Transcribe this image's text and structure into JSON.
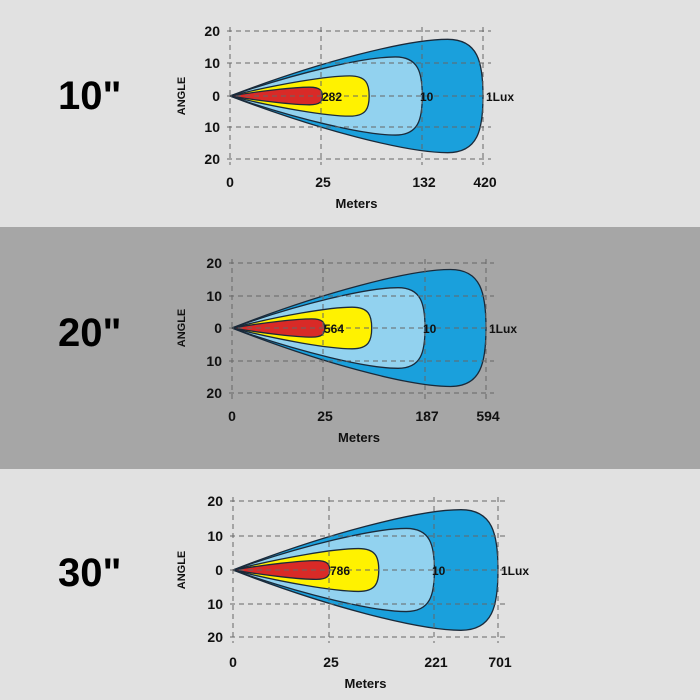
{
  "colors": {
    "band_light": "#e1e1e1",
    "band_dark": "#a6a6a6",
    "outer_1lux": "#1aa0dc",
    "mid_10lux": "#92d2ef",
    "inner_yellow": "#fff200",
    "core_red": "#d92a27",
    "outline": "#1a2a3a",
    "grid": "#666666"
  },
  "chart_data": [
    {
      "type": "beam-pattern",
      "label": "10\"",
      "ylabel": "ANGLE",
      "xlabel": "Meters",
      "y_ticks": [
        "20",
        "10",
        "0",
        "10",
        "20"
      ],
      "x_ticks": [
        "0",
        "25",
        "132",
        "420"
      ],
      "contours": [
        {
          "value_label": "282",
          "distance_m": 25
        },
        {
          "value_label": "10",
          "distance_m": 132
        },
        {
          "value_label": "1Lux",
          "distance_m": 420
        }
      ],
      "grid": true
    },
    {
      "type": "beam-pattern",
      "label": "20\"",
      "ylabel": "ANGLE",
      "xlabel": "Meters",
      "y_ticks": [
        "20",
        "10",
        "0",
        "10",
        "20"
      ],
      "x_ticks": [
        "0",
        "25",
        "187",
        "594"
      ],
      "contours": [
        {
          "value_label": "564",
          "distance_m": 25
        },
        {
          "value_label": "10",
          "distance_m": 187
        },
        {
          "value_label": "1Lux",
          "distance_m": 594
        }
      ],
      "grid": true
    },
    {
      "type": "beam-pattern",
      "label": "30\"",
      "ylabel": "ANGLE",
      "xlabel": "Meters",
      "y_ticks": [
        "20",
        "10",
        "0",
        "10",
        "20"
      ],
      "x_ticks": [
        "0",
        "25",
        "221",
        "701"
      ],
      "contours": [
        {
          "value_label": "786",
          "distance_m": 25
        },
        {
          "value_label": "10",
          "distance_m": 221
        },
        {
          "value_label": "1Lux",
          "distance_m": 701
        }
      ],
      "grid": true
    }
  ]
}
